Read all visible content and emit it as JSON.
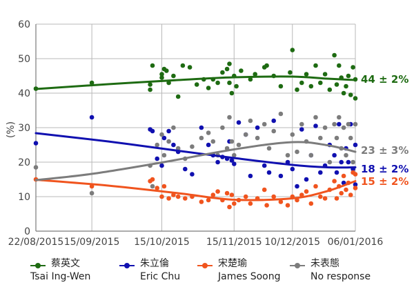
{
  "chart_data": {
    "type": "scatter",
    "ylabel": "(%)",
    "ylim": [
      0,
      60
    ],
    "yticks": [
      0,
      10,
      20,
      30,
      40,
      50,
      60
    ],
    "x_range": [
      "2015-08-22",
      "2016-01-06"
    ],
    "x_ticks": [
      {
        "date": "2015-08-22",
        "label": "22/08/2015"
      },
      {
        "date": "2015-09-15",
        "label": "15/09/2015"
      },
      {
        "date": "2015-10-15",
        "label": "15/10/2015"
      },
      {
        "date": "2015-11-15",
        "label": "15/11/2015"
      },
      {
        "date": "2015-12-10",
        "label": "10/12/2015"
      },
      {
        "date": "2016-01-06",
        "label": "06/01/2016"
      }
    ],
    "grid": true,
    "legend_position": "bottom",
    "series": [
      {
        "name": "蔡英文 Tsai Ing-Wen",
        "name_zh": "蔡英文",
        "name_en": "Tsai Ing-Wen",
        "color": "#1e6b12",
        "end_label": "44 ± 2%",
        "trend": [
          [
            "2015-08-22",
            41.2
          ],
          [
            "2015-09-22",
            42.6
          ],
          [
            "2015-10-22",
            43.8
          ],
          [
            "2015-11-15",
            44.6
          ],
          [
            "2015-12-10",
            44.8
          ],
          [
            "2015-12-25",
            44.2
          ],
          [
            "2016-01-06",
            43.8
          ]
        ],
        "points": [
          [
            "2015-08-22",
            41.3
          ],
          [
            "2015-09-15",
            43
          ],
          [
            "2015-10-10",
            41
          ],
          [
            "2015-10-10",
            42.5
          ],
          [
            "2015-10-11",
            48
          ],
          [
            "2015-10-15",
            44.5
          ],
          [
            "2015-10-15",
            45.5
          ],
          [
            "2015-10-16",
            47
          ],
          [
            "2015-10-17",
            46.5
          ],
          [
            "2015-10-18",
            43
          ],
          [
            "2015-10-20",
            45
          ],
          [
            "2015-10-22",
            39
          ],
          [
            "2015-10-24",
            48
          ],
          [
            "2015-10-27",
            47.5
          ],
          [
            "2015-10-30",
            42.5
          ],
          [
            "2015-11-02",
            44
          ],
          [
            "2015-11-04",
            41.5
          ],
          [
            "2015-11-06",
            44
          ],
          [
            "2015-11-08",
            43
          ],
          [
            "2015-11-10",
            46
          ],
          [
            "2015-11-12",
            47
          ],
          [
            "2015-11-13",
            48.5
          ],
          [
            "2015-11-13",
            43
          ],
          [
            "2015-11-14",
            40
          ],
          [
            "2015-11-15",
            45
          ],
          [
            "2015-11-16",
            42
          ],
          [
            "2015-11-18",
            46.5
          ],
          [
            "2015-11-22",
            44
          ],
          [
            "2015-11-24",
            45.5
          ],
          [
            "2015-11-28",
            47.5
          ],
          [
            "2015-11-29",
            48
          ],
          [
            "2015-12-02",
            45
          ],
          [
            "2015-12-05",
            42
          ],
          [
            "2015-12-09",
            46
          ],
          [
            "2015-12-10",
            52.5
          ],
          [
            "2015-12-12",
            41
          ],
          [
            "2015-12-14",
            43
          ],
          [
            "2015-12-16",
            45.5
          ],
          [
            "2015-12-18",
            42
          ],
          [
            "2015-12-20",
            48
          ],
          [
            "2015-12-22",
            43
          ],
          [
            "2015-12-24",
            45.5
          ],
          [
            "2015-12-26",
            41
          ],
          [
            "2015-12-28",
            51
          ],
          [
            "2015-12-29",
            42.5
          ],
          [
            "2015-12-30",
            48
          ],
          [
            "2015-12-31",
            44.5
          ],
          [
            "2016-01-01",
            40
          ],
          [
            "2016-01-02",
            42
          ],
          [
            "2016-01-03",
            45
          ],
          [
            "2016-01-04",
            39.5
          ],
          [
            "2016-01-05",
            47.5
          ],
          [
            "2016-01-06",
            38.5
          ],
          [
            "2016-01-06",
            44
          ]
        ]
      },
      {
        "name": "朱立倫 Eric Chu",
        "name_zh": "朱立倫",
        "name_en": "Eric Chu",
        "color": "#1010b0",
        "end_label": "18 ± 2%",
        "trend": [
          [
            "2015-08-22",
            28.4
          ],
          [
            "2015-09-22",
            26
          ],
          [
            "2015-10-22",
            23.3
          ],
          [
            "2015-11-15",
            21.2
          ],
          [
            "2015-12-10",
            19.2
          ],
          [
            "2015-12-25",
            18.5
          ],
          [
            "2016-01-06",
            18.5
          ]
        ],
        "points": [
          [
            "2015-08-22",
            25.5
          ],
          [
            "2015-09-15",
            33
          ],
          [
            "2015-10-10",
            29.5
          ],
          [
            "2015-10-11",
            29
          ],
          [
            "2015-10-13",
            21
          ],
          [
            "2015-10-15",
            19
          ],
          [
            "2015-10-16",
            27
          ],
          [
            "2015-10-18",
            29
          ],
          [
            "2015-10-20",
            25
          ],
          [
            "2015-10-22",
            23
          ],
          [
            "2015-10-25",
            18
          ],
          [
            "2015-10-28",
            16.5
          ],
          [
            "2015-11-01",
            30
          ],
          [
            "2015-11-04",
            25
          ],
          [
            "2015-11-06",
            22
          ],
          [
            "2015-11-08",
            20
          ],
          [
            "2015-11-10",
            21.5
          ],
          [
            "2015-11-12",
            21
          ],
          [
            "2015-11-13",
            26
          ],
          [
            "2015-11-14",
            20.5
          ],
          [
            "2015-11-15",
            19.5
          ],
          [
            "2015-11-17",
            31.5
          ],
          [
            "2015-11-20",
            28
          ],
          [
            "2015-11-22",
            16
          ],
          [
            "2015-11-25",
            30
          ],
          [
            "2015-11-28",
            19
          ],
          [
            "2015-11-30",
            17
          ],
          [
            "2015-12-02",
            32
          ],
          [
            "2015-12-05",
            16
          ],
          [
            "2015-12-08",
            20
          ],
          [
            "2015-12-10",
            18
          ],
          [
            "2015-12-12",
            13
          ],
          [
            "2015-12-14",
            29.5
          ],
          [
            "2015-12-16",
            15
          ],
          [
            "2015-12-18",
            22
          ],
          [
            "2015-12-20",
            30.5
          ],
          [
            "2015-12-22",
            17
          ],
          [
            "2015-12-24",
            19
          ],
          [
            "2015-12-26",
            25
          ],
          [
            "2015-12-28",
            22
          ],
          [
            "2015-12-29",
            17
          ],
          [
            "2015-12-30",
            31
          ],
          [
            "2015-12-31",
            20
          ],
          [
            "2016-01-01",
            14
          ],
          [
            "2016-01-02",
            24
          ],
          [
            "2016-01-03",
            20
          ],
          [
            "2016-01-04",
            31
          ],
          [
            "2016-01-05",
            18
          ],
          [
            "2016-01-06",
            25
          ],
          [
            "2016-01-06",
            13.5
          ]
        ]
      },
      {
        "name": "宋楚瑜 James Soong",
        "name_zh": "宋楚瑜",
        "name_en": "James Soong",
        "color": "#f0541e",
        "end_label": "15 ± 2%",
        "trend": [
          [
            "2015-08-22",
            14.9
          ],
          [
            "2015-09-22",
            13.2
          ],
          [
            "2015-10-22",
            11
          ],
          [
            "2015-11-15",
            9.1
          ],
          [
            "2015-12-10",
            9.5
          ],
          [
            "2015-12-25",
            11.6
          ],
          [
            "2016-01-06",
            14.5
          ]
        ],
        "points": [
          [
            "2015-08-22",
            15
          ],
          [
            "2015-09-15",
            13
          ],
          [
            "2015-10-10",
            14.5
          ],
          [
            "2015-10-11",
            15
          ],
          [
            "2015-10-13",
            12.5
          ],
          [
            "2015-10-15",
            10
          ],
          [
            "2015-10-16",
            13
          ],
          [
            "2015-10-18",
            9.5
          ],
          [
            "2015-10-20",
            10.5
          ],
          [
            "2015-10-22",
            10
          ],
          [
            "2015-10-25",
            9.5
          ],
          [
            "2015-10-28",
            10
          ],
          [
            "2015-11-01",
            8.5
          ],
          [
            "2015-11-04",
            9
          ],
          [
            "2015-11-06",
            10.5
          ],
          [
            "2015-11-08",
            11.5
          ],
          [
            "2015-11-10",
            9
          ],
          [
            "2015-11-12",
            11
          ],
          [
            "2015-11-13",
            7
          ],
          [
            "2015-11-14",
            10.5
          ],
          [
            "2015-11-15",
            8
          ],
          [
            "2015-11-17",
            9
          ],
          [
            "2015-11-20",
            10
          ],
          [
            "2015-11-22",
            8
          ],
          [
            "2015-11-25",
            9.5
          ],
          [
            "2015-11-28",
            12
          ],
          [
            "2015-11-29",
            7.5
          ],
          [
            "2015-12-02",
            10
          ],
          [
            "2015-12-05",
            8.5
          ],
          [
            "2015-12-08",
            7.5
          ],
          [
            "2015-12-10",
            10
          ],
          [
            "2015-12-12",
            9
          ],
          [
            "2015-12-14",
            10.5
          ],
          [
            "2015-12-16",
            11.5
          ],
          [
            "2015-12-18",
            8
          ],
          [
            "2015-12-20",
            13
          ],
          [
            "2015-12-22",
            10
          ],
          [
            "2015-12-24",
            9.5
          ],
          [
            "2015-12-26",
            12
          ],
          [
            "2015-12-28",
            14.5
          ],
          [
            "2015-12-29",
            9.5
          ],
          [
            "2015-12-30",
            13
          ],
          [
            "2015-12-31",
            11
          ],
          [
            "2016-01-01",
            16
          ],
          [
            "2016-01-02",
            12
          ],
          [
            "2016-01-03",
            14
          ],
          [
            "2016-01-04",
            10.5
          ],
          [
            "2016-01-05",
            17
          ],
          [
            "2016-01-06",
            12.5
          ],
          [
            "2016-01-06",
            16.5
          ]
        ]
      },
      {
        "name": "未表態 No response",
        "name_zh": "未表態",
        "name_en": "No response",
        "color": "#7c7c7c",
        "end_label": "23 ± 3%",
        "trend": [
          [
            "2015-08-22",
            14.8
          ],
          [
            "2015-09-15",
            16.6
          ],
          [
            "2015-10-15",
            19.9
          ],
          [
            "2015-11-15",
            23.7
          ],
          [
            "2015-12-10",
            25.8
          ],
          [
            "2015-12-25",
            24.9
          ],
          [
            "2016-01-06",
            23
          ]
        ],
        "points": [
          [
            "2015-08-22",
            18.5
          ],
          [
            "2015-09-15",
            11
          ],
          [
            "2015-10-10",
            19
          ],
          [
            "2015-10-11",
            13
          ],
          [
            "2015-10-13",
            25
          ],
          [
            "2015-10-15",
            28
          ],
          [
            "2015-10-16",
            22
          ],
          [
            "2015-10-18",
            26
          ],
          [
            "2015-10-20",
            30
          ],
          [
            "2015-10-22",
            24
          ],
          [
            "2015-10-25",
            21
          ],
          [
            "2015-10-28",
            24.5
          ],
          [
            "2015-11-01",
            27
          ],
          [
            "2015-11-04",
            28.5
          ],
          [
            "2015-11-06",
            26
          ],
          [
            "2015-11-08",
            22
          ],
          [
            "2015-11-10",
            30
          ],
          [
            "2015-11-12",
            24
          ],
          [
            "2015-11-13",
            33
          ],
          [
            "2015-11-14",
            26
          ],
          [
            "2015-11-15",
            22
          ],
          [
            "2015-11-17",
            25
          ],
          [
            "2015-11-20",
            28
          ],
          [
            "2015-11-22",
            32
          ],
          [
            "2015-11-25",
            27
          ],
          [
            "2015-11-28",
            31
          ],
          [
            "2015-11-30",
            24
          ],
          [
            "2015-12-02",
            29
          ],
          [
            "2015-12-05",
            34
          ],
          [
            "2015-12-08",
            22
          ],
          [
            "2015-12-10",
            28
          ],
          [
            "2015-12-12",
            23
          ],
          [
            "2015-12-14",
            31
          ],
          [
            "2015-12-16",
            26
          ],
          [
            "2015-12-18",
            22
          ],
          [
            "2015-12-20",
            33
          ],
          [
            "2015-12-22",
            27
          ],
          [
            "2015-12-24",
            30
          ],
          [
            "2015-12-26",
            20
          ],
          [
            "2015-12-28",
            31
          ],
          [
            "2015-12-29",
            27
          ],
          [
            "2015-12-30",
            33
          ],
          [
            "2015-12-31",
            24
          ],
          [
            "2016-01-01",
            30
          ],
          [
            "2016-01-02",
            22
          ],
          [
            "2016-01-03",
            31
          ],
          [
            "2016-01-04",
            27
          ],
          [
            "2016-01-05",
            20
          ],
          [
            "2016-01-06",
            31
          ]
        ]
      }
    ]
  }
}
